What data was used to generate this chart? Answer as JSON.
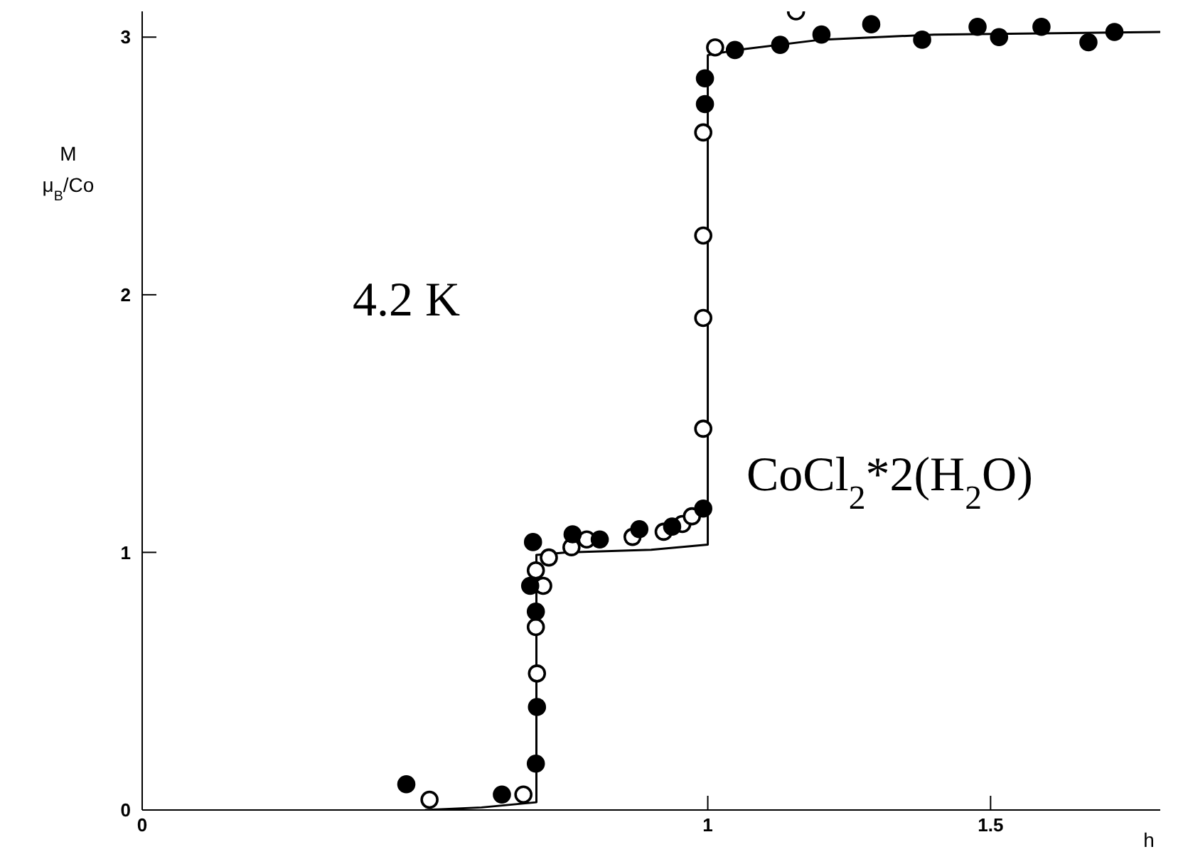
{
  "chart_data": {
    "type": "scatter",
    "xlabel": "h",
    "ylabel": "M\nμ$_{B}$/Co",
    "annotations": [
      "4.2 K",
      "CoCl$_{2}$*2(H$_{2}$O)"
    ],
    "xlim": [
      0,
      1.8
    ],
    "ylim": [
      0,
      3.1
    ],
    "xticks": [
      0,
      1,
      1.5
    ],
    "yticks": [
      0,
      1,
      2,
      3
    ],
    "grid": false,
    "legend": false,
    "marker": "circle",
    "series": [
      {
        "type": "scatter",
        "color": "#ffffff",
        "x": [
          0.508,
          0.674,
          0.698,
          0.696,
          0.709,
          0.696,
          0.719,
          0.759,
          0.786,
          0.867,
          0.922,
          0.955,
          0.972,
          0.992,
          0.992,
          0.992,
          0.992,
          1.013,
          1.156
        ],
        "values": [
          0.04,
          0.06,
          0.53,
          0.71,
          0.87,
          0.93,
          0.98,
          1.02,
          1.05,
          1.06,
          1.08,
          1.11,
          1.14,
          1.48,
          1.91,
          2.23,
          2.63,
          2.96,
          3.1
        ]
      },
      {
        "color": "#000000",
        "x": [
          0.467,
          0.636,
          0.696,
          0.698,
          0.696,
          0.686,
          0.691,
          0.761,
          0.809,
          0.879,
          0.937,
          0.992,
          0.995,
          0.995,
          1.048,
          1.128,
          1.201,
          1.289,
          1.379,
          1.477,
          1.515,
          1.59,
          1.673,
          1.719
        ],
        "values": [
          0.1,
          0.06,
          0.18,
          0.4,
          0.77,
          0.87,
          1.04,
          1.07,
          1.05,
          1.09,
          1.1,
          1.17,
          2.74,
          2.84,
          2.95,
          2.97,
          3.01,
          3.05,
          2.99,
          3.04,
          3.0,
          3.04,
          2.98,
          3.02
        ]
      },
      {
        "type": "line",
        "color": "#000000",
        "marker": "none",
        "x": [
          0.5,
          0.6,
          0.697,
          0.697,
          0.75,
          0.9,
          1.0,
          1.0,
          1.05,
          1.2,
          1.4,
          1.8
        ],
        "values": [
          0,
          0.01,
          0.03,
          0.99,
          1.0,
          1.01,
          1.03,
          2.93,
          2.95,
          2.99,
          3.01,
          3.02
        ]
      }
    ]
  }
}
